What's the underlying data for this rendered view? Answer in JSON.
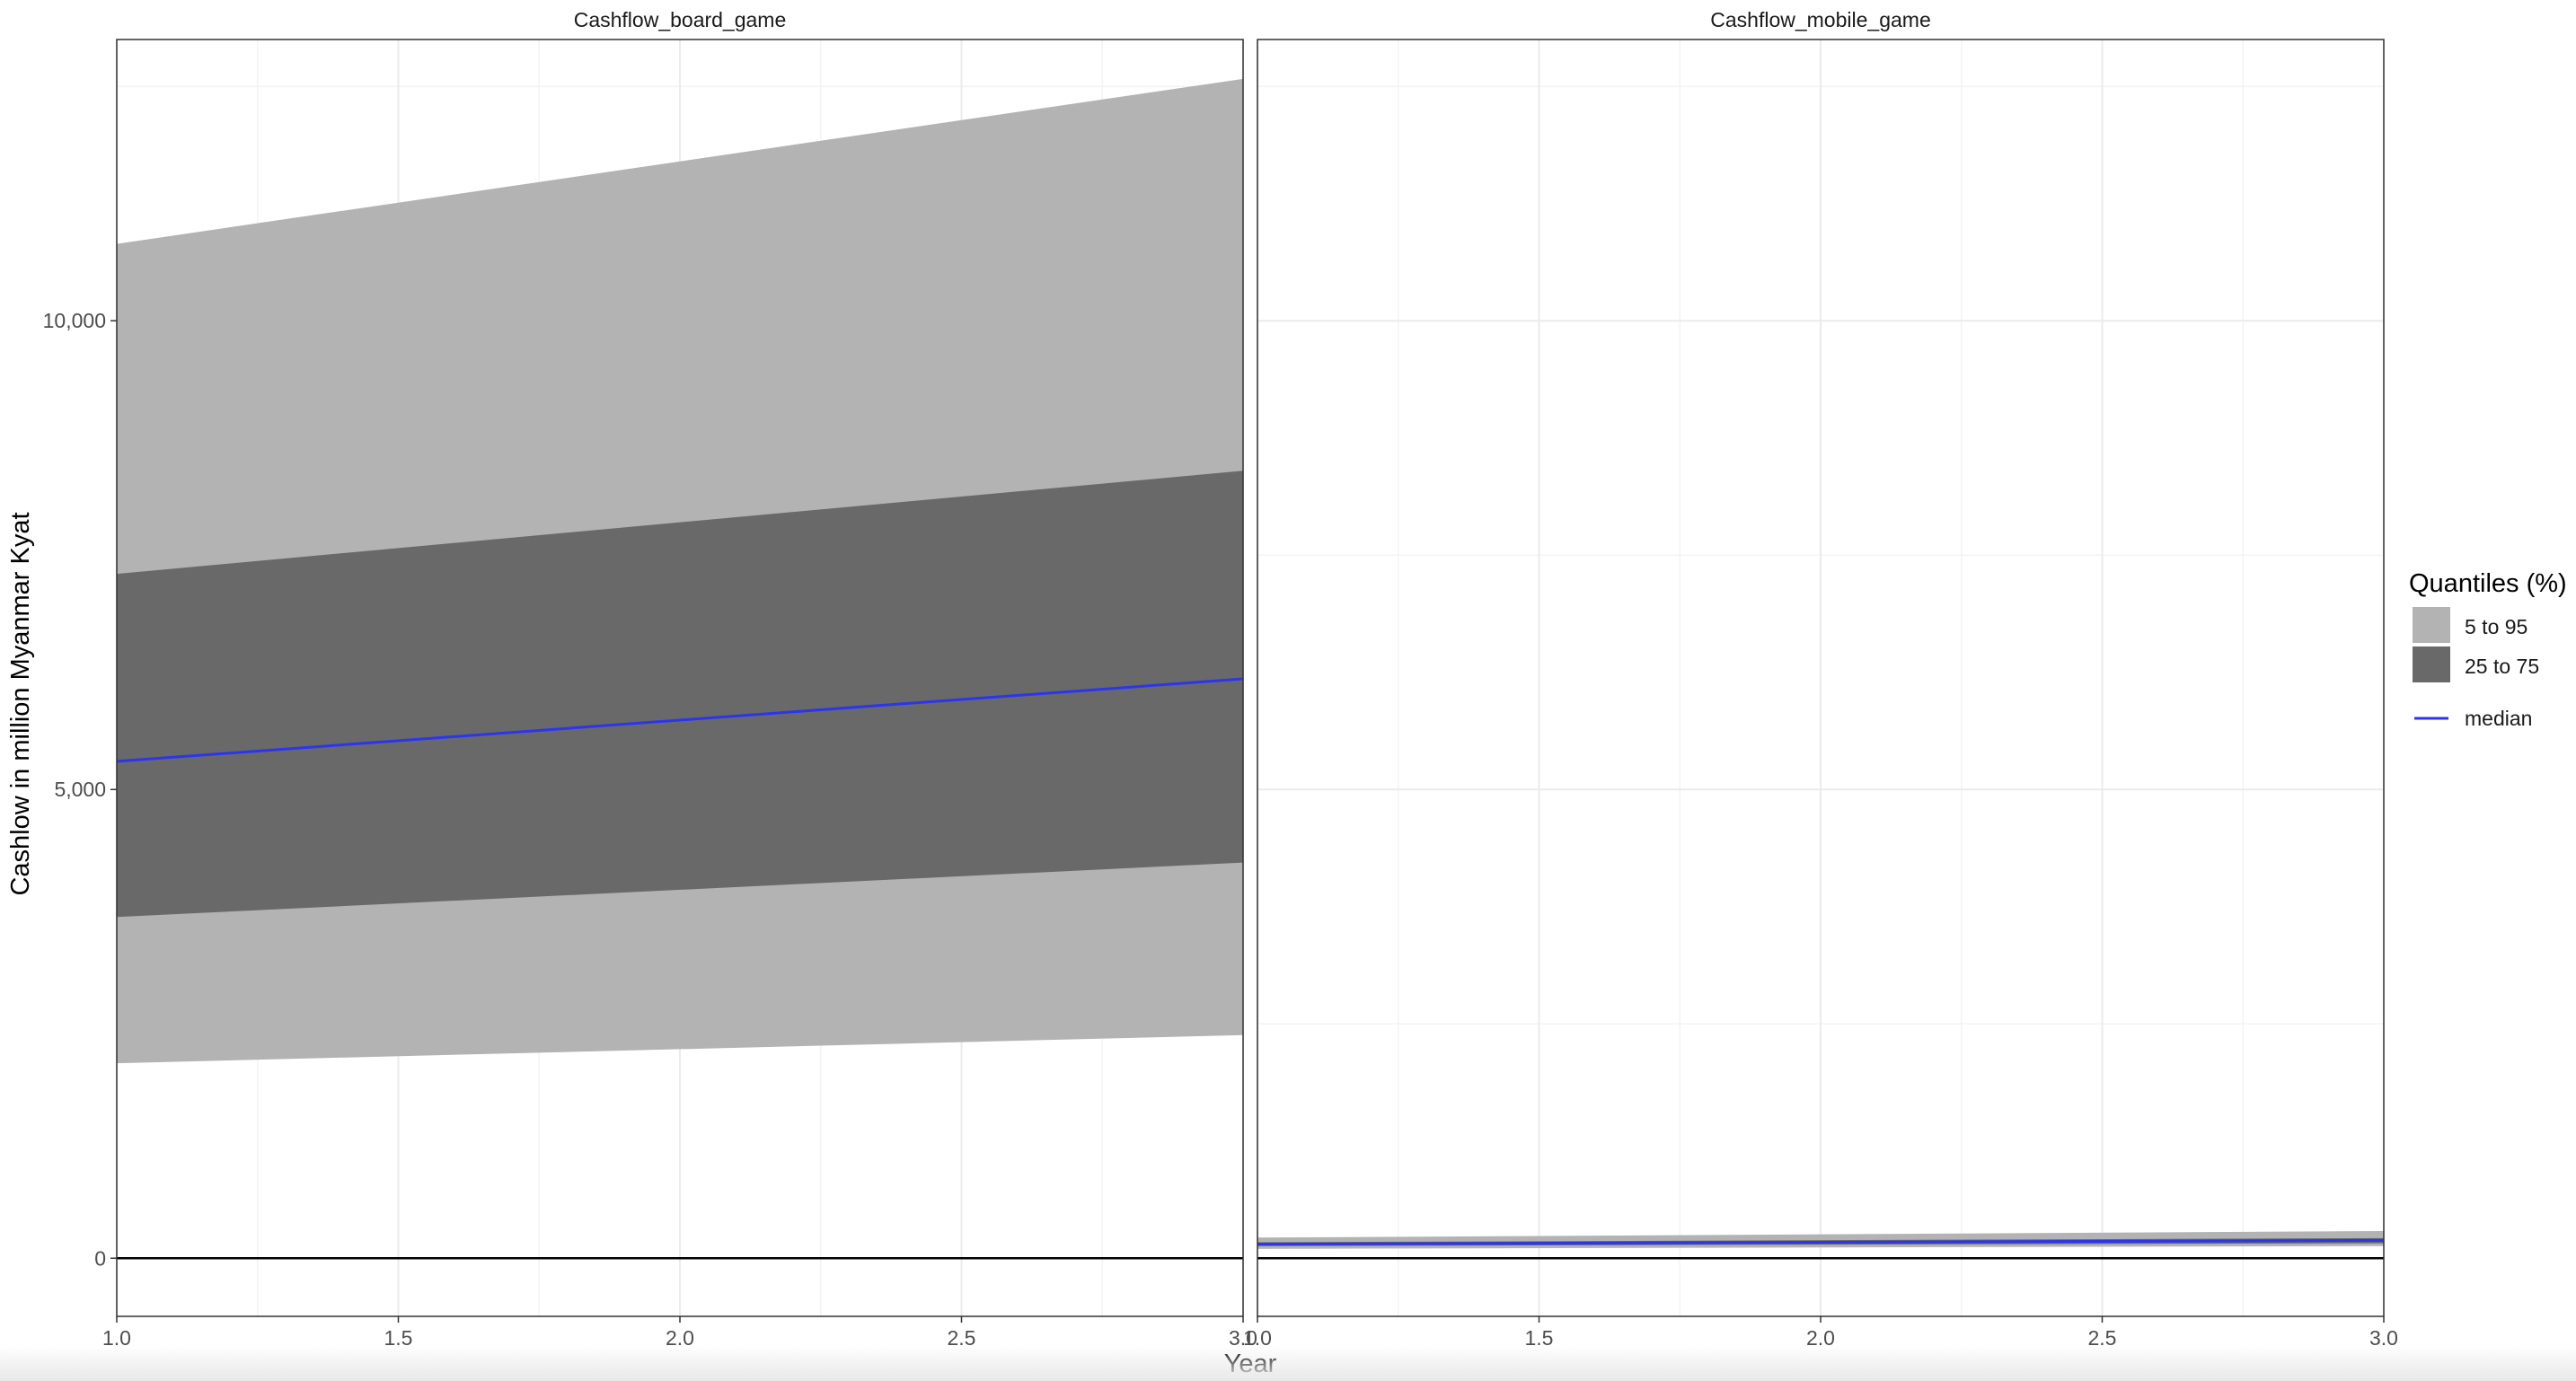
{
  "chart_data": {
    "type": "area",
    "xlabel": "Year",
    "ylabel": "Cashlow in million Myanmar Kyat",
    "xlim": [
      1.0,
      3.0
    ],
    "ylim": [
      -620,
      13000
    ],
    "x_ticks": [
      "1.0",
      "1.5",
      "2.0",
      "2.5",
      "3.0"
    ],
    "y_ticks": [
      {
        "value": 0,
        "label": "0"
      },
      {
        "value": 5000,
        "label": "5,000"
      },
      {
        "value": 10000,
        "label": "10,000"
      }
    ],
    "grid": true,
    "reference_line_y": 0,
    "colors": {
      "band_5_95": "#b3b3b3",
      "band_25_75": "#696969",
      "median": "#2b35f0",
      "grid": "#ebebeb",
      "zero_line": "#000000",
      "panel_border": "#333333"
    },
    "legend": {
      "title": "Quantiles (%)",
      "position": "right",
      "entries": [
        {
          "label": "5 to 95",
          "kind": "fill",
          "color": "#b3b3b3"
        },
        {
          "label": "25 to 75",
          "kind": "fill",
          "color": "#696969"
        },
        {
          "label": "median",
          "kind": "line",
          "color": "#2b35f0"
        }
      ]
    },
    "panels": [
      {
        "title": "Cashflow_board_game",
        "x": [
          1.0,
          3.0
        ],
        "q05": [
          2080,
          2380
        ],
        "q25": [
          3640,
          4220
        ],
        "median": [
          5300,
          6180
        ],
        "q75": [
          7300,
          8400
        ],
        "q95": [
          10820,
          12580
        ]
      },
      {
        "title": "Cashflow_mobile_game",
        "x": [
          1.0,
          3.0
        ],
        "q05": [
          100,
          130
        ],
        "q25": [
          130,
          160
        ],
        "median": [
          150,
          190
        ],
        "q75": [
          170,
          215
        ],
        "q95": [
          220,
          290
        ]
      }
    ]
  }
}
